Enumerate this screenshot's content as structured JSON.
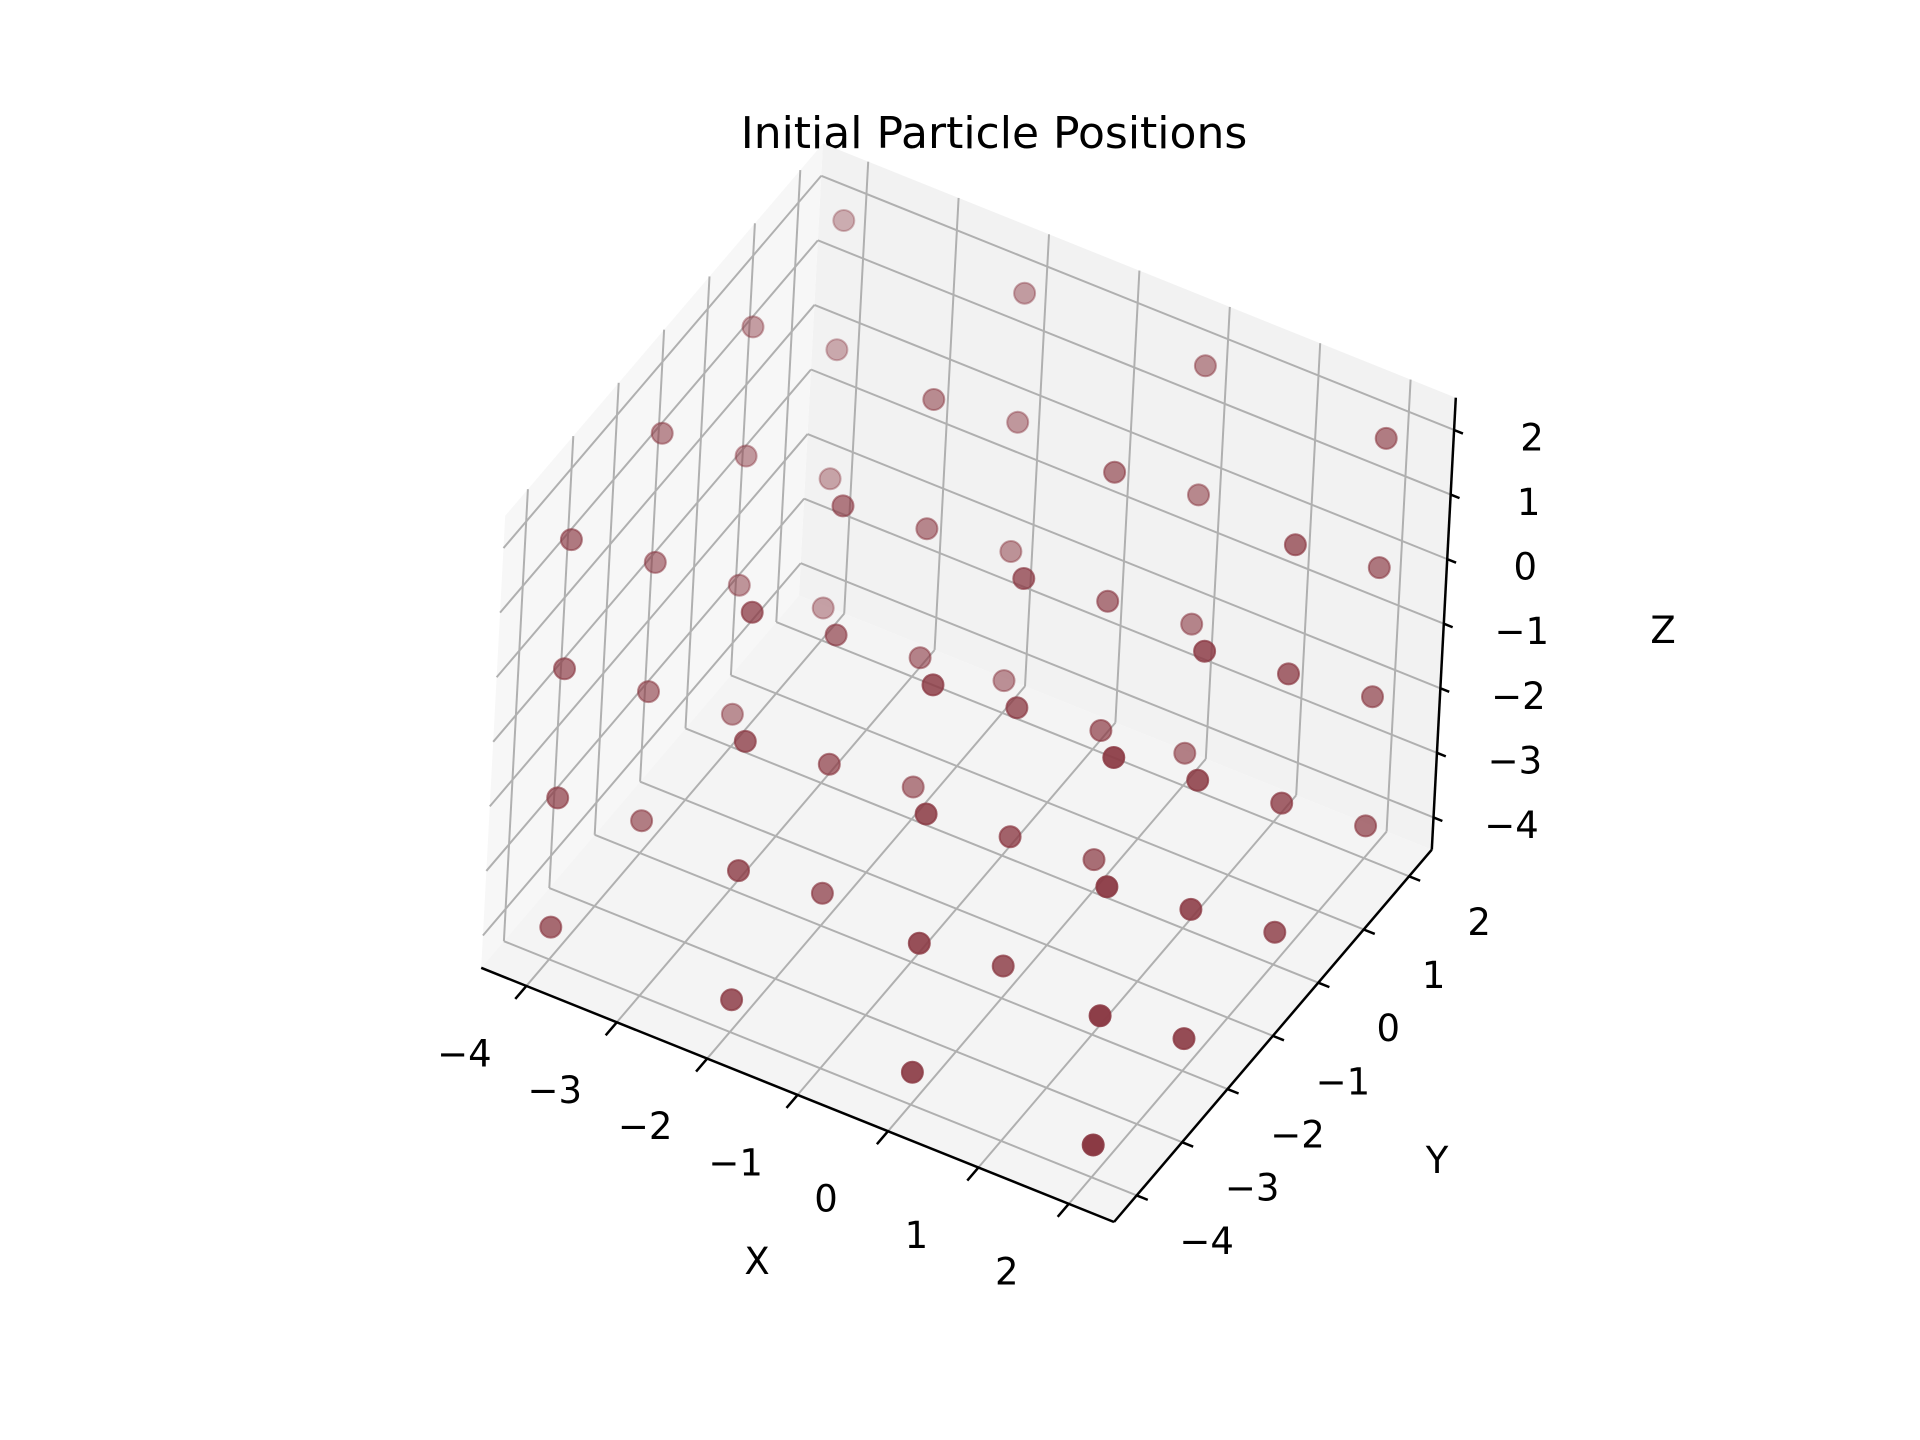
{
  "chart_data": {
    "type": "scatter",
    "projection": "3d",
    "title": "Initial Particle Positions",
    "xlabel": "X",
    "ylabel": "Y",
    "zlabel": "Z",
    "xlim": [
      -4.5,
      2.5
    ],
    "ylim": [
      -4.5,
      2.5
    ],
    "zlim": [
      -4.5,
      2.5
    ],
    "xticks": [
      -4,
      -3,
      -2,
      -1,
      0,
      1,
      2
    ],
    "yticks": [
      -4,
      -3,
      -2,
      -1,
      0,
      1,
      2
    ],
    "zticks": [
      -4,
      -3,
      -2,
      -1,
      0,
      1,
      2
    ],
    "xtick_labels": [
      "−4",
      "−3",
      "−2",
      "−1",
      "0",
      "1",
      "2"
    ],
    "ytick_labels": [
      "−4",
      "−3",
      "−2",
      "−1",
      "0",
      "1",
      "2"
    ],
    "ztick_labels": [
      "−4",
      "−3",
      "−2",
      "−1",
      "0",
      "1",
      "2"
    ],
    "grid": true,
    "point_color": "#8b3a44",
    "pane_colors": {
      "side": "#f2f2f2",
      "floor": "#f4f4f4"
    },
    "grid_color": "#b0b0b0",
    "lattice": {
      "description_source": "regular grid of particles",
      "x_values": [
        -4,
        -2,
        0,
        2
      ],
      "y_values": [
        -4,
        -2,
        0,
        2
      ],
      "z_values": [
        -4,
        -2,
        0,
        2
      ]
    }
  }
}
